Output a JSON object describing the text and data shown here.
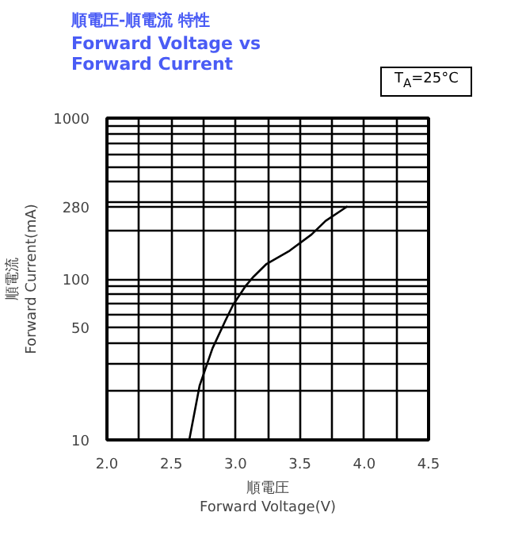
{
  "chart_data": {
    "type": "line",
    "title": "順電圧-順電流 特性",
    "subtitle": "Forward Voltage vs\nForward Current",
    "xlabel": "順電圧\nForward Voltage(V)",
    "ylabel": "順電流\nForward Current(mA)",
    "annotations": [
      "T$_{A}$=25°C"
    ],
    "log": "y",
    "grid": true,
    "xlim": [
      2.0,
      4.5
    ],
    "xticks": [
      {
        "value": 2,
        "label": "2.0"
      },
      {
        "value": 2.25,
        "label": null
      },
      2.5,
      {
        "value": 2.75,
        "label": null
      },
      {
        "value": 3,
        "label": "3.0"
      },
      {
        "value": 3.25,
        "label": null
      },
      3.5,
      {
        "value": 3.75,
        "label": null
      },
      {
        "value": 4,
        "label": "4.0"
      },
      {
        "value": 4.25,
        "label": null
      },
      4.5
    ],
    "ylim": [
      10,
      1000
    ],
    "yticks": [
      10,
      {
        "value": 20,
        "label": null
      },
      {
        "value": 30,
        "label": null
      },
      {
        "value": 40,
        "label": null
      },
      50,
      {
        "value": 60,
        "label": null
      },
      {
        "value": 70,
        "label": null
      },
      {
        "value": 80,
        "label": null
      },
      {
        "value": 90,
        "label": null
      },
      100,
      {
        "value": 200,
        "label": null
      },
      280,
      {
        "value": 300,
        "label": null
      },
      {
        "value": 400,
        "label": null
      },
      {
        "value": 500,
        "label": null
      },
      {
        "value": 600,
        "label": null
      },
      {
        "value": 700,
        "label": null
      },
      {
        "value": 800,
        "label": null
      },
      {
        "value": 900,
        "label": null
      },
      1000
    ],
    "series": [
      {
        "color": "#000000",
        "x": [
          2.64,
          2.72,
          2.82,
          2.92,
          2.98,
          3.08,
          3.14,
          3.24,
          3.42,
          3.59,
          3.7,
          3.87
        ],
        "values": [
          10,
          21.7,
          37,
          55,
          69,
          91,
          103.5,
          124,
          150,
          189,
          230,
          283
        ]
      }
    ]
  }
}
